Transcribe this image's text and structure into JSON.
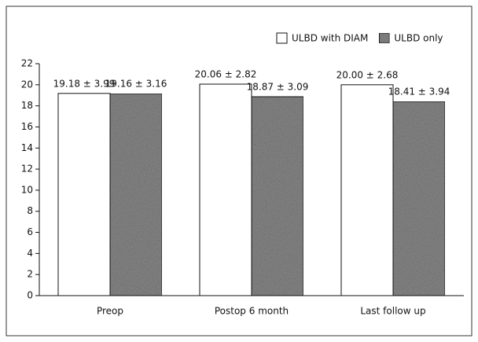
{
  "chart_data": {
    "type": "bar",
    "categories": [
      "Preop",
      "Postop 6 month",
      "Last follow up"
    ],
    "series": [
      {
        "name": "ULBD with DIAM",
        "color": "#ffffff",
        "values": [
          19.18,
          20.06,
          20.0
        ],
        "value_labels": [
          "19.18 ± 3.99",
          "20.06 ± 2.82",
          "20.00 ± 2.68"
        ]
      },
      {
        "name": "ULBD only",
        "color": "#8c8c8c",
        "values": [
          19.16,
          18.87,
          18.41
        ],
        "value_labels": [
          "19.16 ± 3.16",
          "18.87 ± 3.09",
          "18.41 ± 3.94"
        ]
      }
    ],
    "ylim": [
      0,
      22
    ],
    "yticks": [
      0,
      2,
      4,
      6,
      8,
      10,
      12,
      14,
      16,
      18,
      20,
      22
    ],
    "legend": "top-right"
  }
}
